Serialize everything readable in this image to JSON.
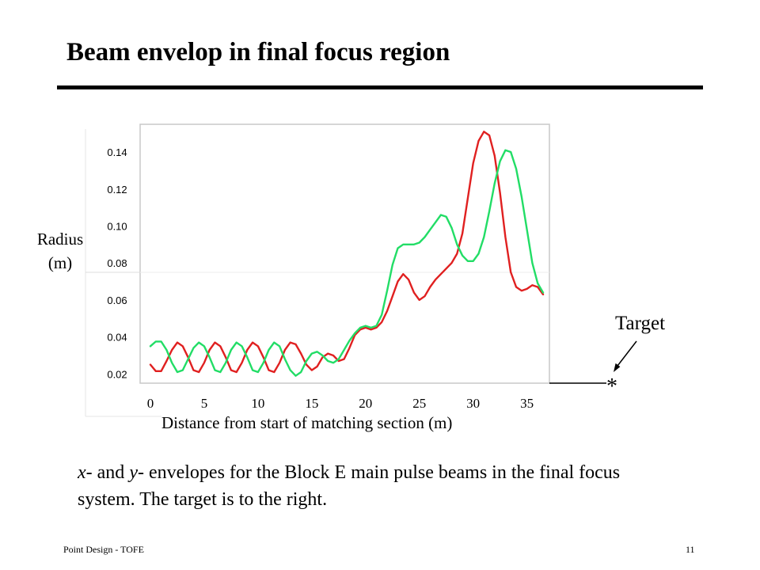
{
  "slide": {
    "title": "Beam envelop in final focus region",
    "caption_parts": [
      {
        "text": "x",
        "italic": true
      },
      {
        "text": "- and ",
        "italic": false
      },
      {
        "text": "y",
        "italic": true
      },
      {
        "text": "- envelopes for the Block E main pulse beams in the final focus system. The target is to the right.",
        "italic": false
      }
    ],
    "footer_left": "Point Design - TOFE",
    "page_number": "11"
  },
  "target": {
    "label": "Target",
    "marker": "*"
  },
  "chart_data": {
    "type": "line",
    "ylabel_line1": "Radius",
    "ylabel_line2": "(m)",
    "xlabel": "Distance from start of matching section (m)",
    "xlim": [
      0,
      36.5
    ],
    "ylim": [
      0.015,
      0.155
    ],
    "x_ticks": [
      0,
      5,
      10,
      15,
      20,
      25,
      30,
      35
    ],
    "y_ticks": [
      "0.02",
      "0.04",
      "0.06",
      "0.08",
      "0.10",
      "0.12",
      "0.14"
    ],
    "series": [
      {
        "color": "#e02020",
        "points": [
          [
            0,
            0.025
          ],
          [
            0.5,
            0.0215
          ],
          [
            1,
            0.0215
          ],
          [
            1.5,
            0.027
          ],
          [
            2,
            0.033
          ],
          [
            2.5,
            0.037
          ],
          [
            3,
            0.035
          ],
          [
            3.5,
            0.029
          ],
          [
            4,
            0.022
          ],
          [
            4.5,
            0.021
          ],
          [
            5,
            0.026
          ],
          [
            5.5,
            0.033
          ],
          [
            6,
            0.037
          ],
          [
            6.5,
            0.035
          ],
          [
            7,
            0.029
          ],
          [
            7.5,
            0.022
          ],
          [
            8,
            0.021
          ],
          [
            8.5,
            0.026
          ],
          [
            9,
            0.033
          ],
          [
            9.5,
            0.037
          ],
          [
            10,
            0.035
          ],
          [
            10.5,
            0.029
          ],
          [
            11,
            0.022
          ],
          [
            11.5,
            0.021
          ],
          [
            12,
            0.026
          ],
          [
            12.5,
            0.033
          ],
          [
            13,
            0.037
          ],
          [
            13.5,
            0.036
          ],
          [
            14,
            0.031
          ],
          [
            14.5,
            0.025
          ],
          [
            15,
            0.022
          ],
          [
            15.5,
            0.024
          ],
          [
            16,
            0.029
          ],
          [
            16.5,
            0.031
          ],
          [
            17,
            0.03
          ],
          [
            17.5,
            0.027
          ],
          [
            18,
            0.028
          ],
          [
            18.5,
            0.034
          ],
          [
            19,
            0.041
          ],
          [
            19.5,
            0.044
          ],
          [
            20,
            0.045
          ],
          [
            20.5,
            0.044
          ],
          [
            21,
            0.045
          ],
          [
            21.5,
            0.048
          ],
          [
            22,
            0.054
          ],
          [
            22.5,
            0.062
          ],
          [
            23,
            0.07
          ],
          [
            23.5,
            0.074
          ],
          [
            24,
            0.071
          ],
          [
            24.5,
            0.064
          ],
          [
            25,
            0.06
          ],
          [
            25.5,
            0.062
          ],
          [
            26,
            0.067
          ],
          [
            26.5,
            0.071
          ],
          [
            27,
            0.074
          ],
          [
            27.5,
            0.077
          ],
          [
            28,
            0.08
          ],
          [
            28.5,
            0.085
          ],
          [
            29,
            0.096
          ],
          [
            29.5,
            0.115
          ],
          [
            30,
            0.134
          ],
          [
            30.5,
            0.146
          ],
          [
            31,
            0.151
          ],
          [
            31.5,
            0.149
          ],
          [
            32,
            0.138
          ],
          [
            32.5,
            0.118
          ],
          [
            33,
            0.094
          ],
          [
            33.5,
            0.075
          ],
          [
            34,
            0.067
          ],
          [
            34.5,
            0.065
          ],
          [
            35,
            0.066
          ],
          [
            35.5,
            0.068
          ],
          [
            36,
            0.067
          ],
          [
            36.5,
            0.063
          ]
        ]
      },
      {
        "color": "#22dd66",
        "points": [
          [
            0,
            0.035
          ],
          [
            0.5,
            0.0375
          ],
          [
            1,
            0.0375
          ],
          [
            1.5,
            0.033
          ],
          [
            2,
            0.026
          ],
          [
            2.5,
            0.021
          ],
          [
            3,
            0.022
          ],
          [
            3.5,
            0.028
          ],
          [
            4,
            0.034
          ],
          [
            4.5,
            0.037
          ],
          [
            5,
            0.035
          ],
          [
            5.5,
            0.029
          ],
          [
            6,
            0.022
          ],
          [
            6.5,
            0.021
          ],
          [
            7,
            0.026
          ],
          [
            7.5,
            0.033
          ],
          [
            8,
            0.037
          ],
          [
            8.5,
            0.035
          ],
          [
            9,
            0.029
          ],
          [
            9.5,
            0.022
          ],
          [
            10,
            0.021
          ],
          [
            10.5,
            0.026
          ],
          [
            11,
            0.033
          ],
          [
            11.5,
            0.037
          ],
          [
            12,
            0.035
          ],
          [
            12.5,
            0.028
          ],
          [
            13,
            0.022
          ],
          [
            13.5,
            0.019
          ],
          [
            14,
            0.021
          ],
          [
            14.5,
            0.027
          ],
          [
            15,
            0.031
          ],
          [
            15.5,
            0.032
          ],
          [
            16,
            0.03
          ],
          [
            16.5,
            0.027
          ],
          [
            17,
            0.026
          ],
          [
            17.5,
            0.028
          ],
          [
            18,
            0.033
          ],
          [
            18.5,
            0.038
          ],
          [
            19,
            0.042
          ],
          [
            19.5,
            0.045
          ],
          [
            20,
            0.046
          ],
          [
            20.5,
            0.045
          ],
          [
            21,
            0.046
          ],
          [
            21.5,
            0.052
          ],
          [
            22,
            0.065
          ],
          [
            22.5,
            0.079
          ],
          [
            23,
            0.088
          ],
          [
            23.5,
            0.09
          ],
          [
            24,
            0.09
          ],
          [
            24.5,
            0.09
          ],
          [
            25,
            0.091
          ],
          [
            25.5,
            0.094
          ],
          [
            26,
            0.098
          ],
          [
            26.5,
            0.102
          ],
          [
            27,
            0.106
          ],
          [
            27.5,
            0.105
          ],
          [
            28,
            0.099
          ],
          [
            28.5,
            0.09
          ],
          [
            29,
            0.084
          ],
          [
            29.5,
            0.081
          ],
          [
            30,
            0.081
          ],
          [
            30.5,
            0.085
          ],
          [
            31,
            0.094
          ],
          [
            31.5,
            0.108
          ],
          [
            32,
            0.123
          ],
          [
            32.5,
            0.135
          ],
          [
            33,
            0.141
          ],
          [
            33.5,
            0.14
          ],
          [
            34,
            0.131
          ],
          [
            34.5,
            0.116
          ],
          [
            35,
            0.098
          ],
          [
            35.5,
            0.08
          ],
          [
            36,
            0.069
          ],
          [
            36.5,
            0.064
          ]
        ]
      }
    ]
  }
}
